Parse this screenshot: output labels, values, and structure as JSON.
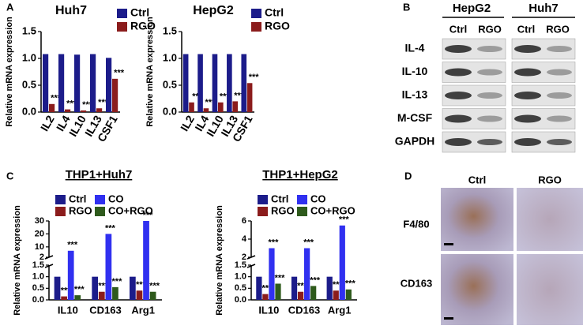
{
  "panel_labels": [
    "A",
    "B",
    "C",
    "D"
  ],
  "chart_data": [
    {
      "type": "bar",
      "title": "Huh7",
      "y_label": "Relative mRNA expression",
      "categories": [
        "IL2",
        "IL4",
        "IL10",
        "IL13",
        "CSF1"
      ],
      "series": [
        {
          "name": "Ctrl",
          "color": "#1c1c8a",
          "values": [
            1.08,
            1.08,
            1.07,
            1.08,
            1.01
          ]
        },
        {
          "name": "RGO",
          "color": "#8b1c1c",
          "values": [
            0.15,
            0.05,
            0.03,
            0.07,
            0.62
          ],
          "annotations": [
            "***",
            "***",
            "***",
            "***",
            "***"
          ]
        }
      ],
      "ylim": [
        0,
        1.5
      ],
      "yticks": [
        {
          "value": 0,
          "label": "0.0"
        },
        {
          "value": 0.5,
          "label": "0.5"
        },
        {
          "value": 1,
          "label": "1.0"
        },
        {
          "value": 1.5,
          "label": "1.5"
        }
      ],
      "legend": "upper right"
    },
    {
      "type": "bar",
      "title": "HepG2",
      "y_label": "Relative mRNA expression",
      "categories": [
        "IL2",
        "IL4",
        "IL10",
        "IL13",
        "CSF1"
      ],
      "series": [
        {
          "name": "Ctrl",
          "color": "#1c1c8a",
          "values": [
            1.08,
            1.08,
            1.08,
            1.08,
            1.08
          ]
        },
        {
          "name": "RGO",
          "color": "#8b1c1c",
          "values": [
            0.18,
            0.07,
            0.18,
            0.2,
            0.54
          ],
          "annotations": [
            "**",
            "***",
            "***",
            "***",
            "***"
          ]
        }
      ],
      "ylim": [
        0,
        1.5
      ],
      "yticks": [
        {
          "value": 0,
          "label": "0.0"
        },
        {
          "value": 0.5,
          "label": "0.5"
        },
        {
          "value": 1,
          "label": "1.0"
        },
        {
          "value": 1.5,
          "label": "1.5"
        }
      ],
      "legend": "upper right"
    },
    {
      "type": "bar",
      "title": "THP1+Huh7",
      "y_label": "Relative mRNA expression",
      "categories": [
        "IL10",
        "CD163",
        "Arg1"
      ],
      "series": [
        {
          "name": "Ctrl",
          "color": "#1c1c8a",
          "values": [
            1.0,
            1.0,
            1.0
          ]
        },
        {
          "name": "RGO",
          "color": "#8b1c1c",
          "values": [
            0.15,
            0.35,
            0.4
          ],
          "annotations": [
            "***",
            "***",
            "***"
          ]
        },
        {
          "name": "CO",
          "color": "#3030f0",
          "values": [
            7,
            20,
            30
          ],
          "annotations": [
            "***",
            "***",
            "***"
          ]
        },
        {
          "name": "CO+RGO",
          "color": "#2e5a1c",
          "values": [
            0.2,
            0.55,
            0.35
          ],
          "annotations": [
            "***",
            "***",
            "***"
          ]
        }
      ],
      "ylim": [
        0,
        1.5
      ],
      "yticks": [
        {
          "value": 0,
          "label": "0.0"
        },
        {
          "value": 0.5,
          "label": "0.5"
        },
        {
          "value": 1,
          "label": "1.0"
        },
        {
          "value": 1.5,
          "label": "1.5"
        }
      ],
      "ylim_upper": [
        2,
        30
      ],
      "yticks_upper": [
        2,
        10,
        20,
        30
      ],
      "legend": "top"
    },
    {
      "type": "bar",
      "title": "THP1+HepG2",
      "y_label": "Relative mRNA expression",
      "categories": [
        "IL10",
        "CD163",
        "Arg1"
      ],
      "series": [
        {
          "name": "Ctrl",
          "color": "#1c1c8a",
          "values": [
            1.0,
            1.0,
            1.0
          ]
        },
        {
          "name": "RGO",
          "color": "#8b1c1c",
          "values": [
            0.25,
            0.35,
            0.4
          ],
          "annotations": [
            "***",
            "***",
            "***"
          ]
        },
        {
          "name": "CO",
          "color": "#3030f0",
          "values": [
            3,
            3,
            5.5
          ],
          "annotations": [
            "***",
            "***",
            "***"
          ]
        },
        {
          "name": "CO+RGO",
          "color": "#2e5a1c",
          "values": [
            0.7,
            0.6,
            0.45
          ],
          "annotations": [
            "***",
            "***",
            "***"
          ]
        }
      ],
      "ylim": [
        0,
        1.5
      ],
      "yticks": [
        {
          "value": 0,
          "label": "0.0"
        },
        {
          "value": 0.5,
          "label": "0.5"
        },
        {
          "value": 1,
          "label": "1.0"
        },
        {
          "value": 1.5,
          "label": "1.5"
        }
      ],
      "ylim_upper": [
        2,
        6
      ],
      "yticks_upper": [
        2,
        4,
        6
      ],
      "legend": "top"
    }
  ],
  "blot": {
    "cell_lines": [
      "HepG2",
      "Huh7"
    ],
    "conditions": [
      "Ctrl",
      "RGO",
      "Ctrl",
      "RGO"
    ],
    "rows": [
      "IL-4",
      "IL-10",
      "IL-13",
      "M-CSF",
      "GAPDH"
    ]
  },
  "ihc": {
    "columns": [
      "Ctrl",
      "RGO"
    ],
    "rows": [
      "F4/80",
      "CD163"
    ]
  }
}
